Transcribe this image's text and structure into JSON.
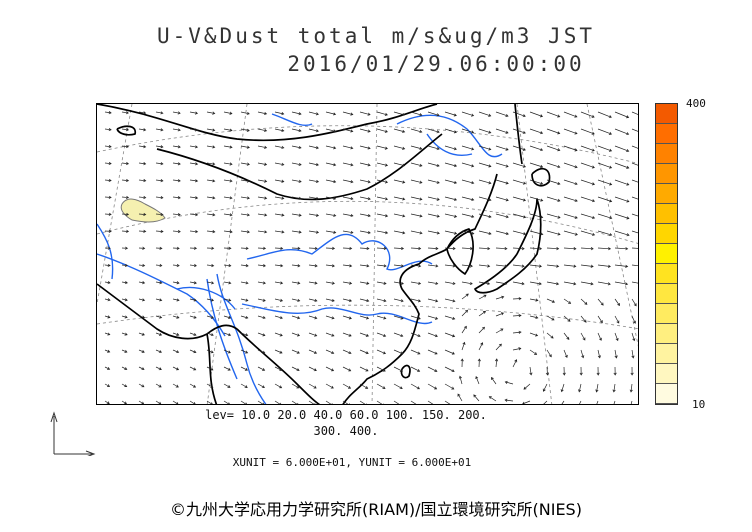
{
  "header": {
    "title_line1": "U-V&Dust total m/s&ug/m3 JST",
    "title_line2": "2016/01/29.06:00:00"
  },
  "colorbar": {
    "max_label": "400",
    "min_label": "10",
    "colors": [
      "#fffbe0",
      "#fff7c0",
      "#fff3a0",
      "#ffef80",
      "#ffeb60",
      "#ffe740",
      "#ffe320",
      "#fff100",
      "#ffd600",
      "#ffc000",
      "#ffaa00",
      "#ff9600",
      "#ff8200",
      "#ff6e00",
      "#f35a00"
    ]
  },
  "legend": {
    "levels_line1": "lev= 10.0 20.0 40.0 60.0 100. 150. 200.",
    "levels_line2": "300. 400.",
    "units_line": "XUNIT = 6.000E+01, YUNIT = 6.000E+01"
  },
  "credit": "©九州大学応用力学研究所(RIAM)/国立環境研究所(NIES)",
  "colors": {
    "coast": "#000000",
    "river": "#2266ee",
    "grid": "#888888",
    "vector": "#222222",
    "dust_fill": "#f5f0b0",
    "dust_line": "#777777"
  }
}
